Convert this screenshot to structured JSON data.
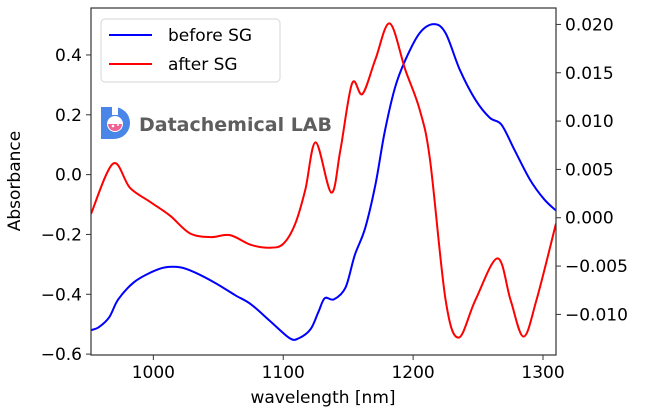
{
  "chart_data": {
    "type": "line",
    "title": "",
    "xlabel": "wavelength [nm]",
    "ylabel": "Absorbance",
    "y2label": "",
    "xlim": [
      952,
      1310
    ],
    "ylim": [
      -0.603,
      0.557
    ],
    "y2lim": [
      -0.0142,
      0.0217
    ],
    "grid": false,
    "legend_position": "top-left",
    "x_ticks": [
      1000,
      1100,
      1200,
      1300
    ],
    "x_tick_labels": [
      "1000",
      "1100",
      "1200",
      "1300"
    ],
    "y_ticks": [
      0.4,
      0.2,
      0.0,
      -0.2,
      -0.4,
      -0.6
    ],
    "y_tick_labels": [
      "0.4",
      "0.2",
      "0.0",
      "−0.2",
      "−0.4",
      "−0.6"
    ],
    "y2_ticks": [
      0.02,
      0.015,
      0.01,
      0.005,
      0.0,
      -0.005,
      -0.01
    ],
    "y2_tick_labels": [
      "0.020",
      "0.015",
      "0.010",
      "0.005",
      "0.000",
      "−0.005",
      "−0.010"
    ],
    "series": [
      {
        "name": "before SG",
        "color": "#0000ff",
        "axis": "left",
        "x": [
          952,
          958,
          966,
          973,
          985,
          998,
          1009,
          1021,
          1032,
          1048,
          1063,
          1075,
          1090,
          1105,
          1112,
          1121,
          1127,
          1132,
          1139,
          1148,
          1155,
          1163,
          1171,
          1178,
          1186,
          1194,
          1205,
          1216,
          1225,
          1236,
          1248,
          1259,
          1268,
          1278,
          1290,
          1301,
          1310
        ],
        "y": [
          -0.52,
          -0.51,
          -0.477,
          -0.417,
          -0.36,
          -0.327,
          -0.31,
          -0.31,
          -0.327,
          -0.363,
          -0.403,
          -0.433,
          -0.49,
          -0.547,
          -0.547,
          -0.517,
          -0.46,
          -0.413,
          -0.417,
          -0.377,
          -0.27,
          -0.18,
          -0.033,
          0.14,
          0.29,
          0.383,
          0.473,
          0.503,
          0.473,
          0.35,
          0.25,
          0.19,
          0.167,
          0.083,
          -0.017,
          -0.083,
          -0.12
        ]
      },
      {
        "name": "after SG",
        "color": "#ff0000",
        "axis": "right",
        "x": [
          952,
          969,
          982,
          998,
          1013,
          1028,
          1044,
          1059,
          1075,
          1090,
          1100,
          1109,
          1117,
          1125,
          1137,
          1144,
          1153,
          1161,
          1171,
          1182,
          1194,
          1205,
          1213,
          1225,
          1235,
          1248,
          1265,
          1275,
          1285,
          1295,
          1310
        ],
        "y": [
          0.0004,
          0.0056,
          0.0031,
          0.0016,
          0.0002,
          -0.0016,
          -0.002,
          -0.0018,
          -0.0028,
          -0.0031,
          -0.0027,
          -0.0007,
          0.0029,
          0.0078,
          0.0026,
          0.007,
          0.0139,
          0.0128,
          0.0164,
          0.0201,
          0.0153,
          0.0112,
          0.006,
          -0.0085,
          -0.0124,
          -0.0085,
          -0.0042,
          -0.0085,
          -0.0123,
          -0.0085,
          -0.0006
        ]
      }
    ]
  },
  "watermark": {
    "text": "Datachemical LAB",
    "icon": "flask-logo-icon",
    "icon_color": "#4a86e8",
    "flask_color": "#f06292"
  }
}
